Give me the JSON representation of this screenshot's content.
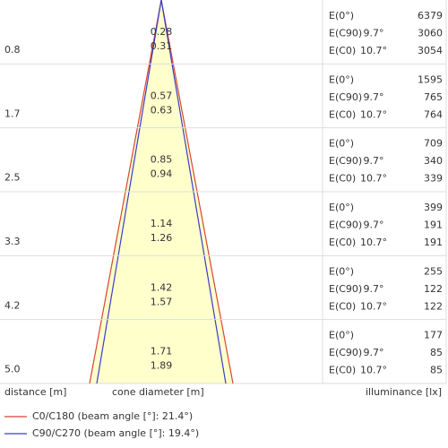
{
  "rows": [
    {
      "distance": "0.8",
      "diameters": [
        "0.28",
        "0.31"
      ],
      "illuminance": [
        {
          "label": "E(0°)",
          "value": "6379"
        },
        {
          "label": "E(C90)",
          "angle": "9.7°",
          "value": "3060"
        },
        {
          "label": "E(C0)",
          "angle": "10.7°",
          "value": "3054"
        }
      ]
    },
    {
      "distance": "1.7",
      "diameters": [
        "0.57",
        "0.63"
      ],
      "illuminance": [
        {
          "label": "E(0°)",
          "value": "1595"
        },
        {
          "label": "E(C90)",
          "angle": "9.7°",
          "value": "765"
        },
        {
          "label": "E(C0)",
          "angle": "10.7°",
          "value": "764"
        }
      ]
    },
    {
      "distance": "2.5",
      "diameters": [
        "0.85",
        "0.94"
      ],
      "illuminance": [
        {
          "label": "E(0°)",
          "value": "709"
        },
        {
          "label": "E(C90)",
          "angle": "9.7°",
          "value": "340"
        },
        {
          "label": "E(C0)",
          "angle": "10.7°",
          "value": "339"
        }
      ]
    },
    {
      "distance": "3.3",
      "diameters": [
        "1.14",
        "1.26"
      ],
      "illuminance": [
        {
          "label": "E(0°)",
          "value": "399"
        },
        {
          "label": "E(C90)",
          "angle": "9.7°",
          "value": "191"
        },
        {
          "label": "E(C0)",
          "angle": "10.7°",
          "value": "191"
        }
      ]
    },
    {
      "distance": "4.2",
      "diameters": [
        "1.42",
        "1.57"
      ],
      "illuminance": [
        {
          "label": "E(0°)",
          "value": "255"
        },
        {
          "label": "E(C90)",
          "angle": "9.7°",
          "value": "122"
        },
        {
          "label": "E(C0)",
          "angle": "10.7°",
          "value": "122"
        }
      ]
    },
    {
      "distance": "5.0",
      "diameters": [
        "1.71",
        "1.89"
      ],
      "illuminance": [
        {
          "label": "E(0°)",
          "value": "177"
        },
        {
          "label": "E(C90)",
          "angle": "9.7°",
          "value": "85"
        },
        {
          "label": "E(C0)",
          "angle": "10.7°",
          "value": "85"
        }
      ]
    }
  ],
  "footer": {
    "distance": "distance [m]",
    "diameter": "cone diameter [m]",
    "illuminance": "illuminance [lx]"
  },
  "legend": [
    "C0/C180 (beam angle [°]: 21.4°)",
    "C90/C270 (beam angle [°]: 19.4°)"
  ]
}
